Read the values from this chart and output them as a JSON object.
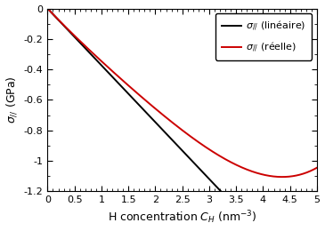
{
  "title": "",
  "xlabel_main": "H concentration C",
  "xlabel_sub": "H",
  "xlabel_units": " (nm⁻³)",
  "ylabel_main": "σ",
  "ylabel_sub": "//",
  "ylabel_units": " (GPa)",
  "xlim": [
    0.0,
    5.0
  ],
  "ylim": [
    -1.2,
    0.0
  ],
  "xticks": [
    0.0,
    0.5,
    1.0,
    1.5,
    2.0,
    2.5,
    3.0,
    3.5,
    4.0,
    4.5,
    5.0
  ],
  "yticks": [
    0.0,
    -0.2,
    -0.4,
    -0.6,
    -0.8,
    -1.0,
    -1.2
  ],
  "linear_color": "#000000",
  "real_color": "#cc0000",
  "linear_end_x": 3.22,
  "linear_slope": -0.373,
  "real_a": -0.373,
  "real_b": -0.052,
  "real_c": 0.0185,
  "background_color": "#ffffff",
  "linewidth": 1.4,
  "legend_sigma_label1": "σ",
  "legend_sub1": "// (linéaire)",
  "legend_sigma_label2": "σ",
  "legend_sub2": "// (réelle)"
}
